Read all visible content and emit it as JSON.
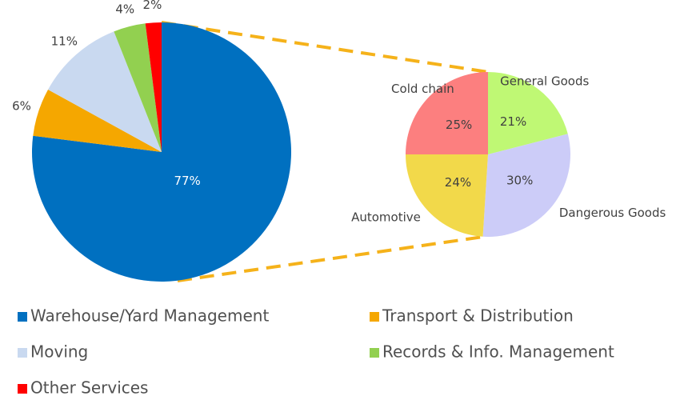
{
  "chart_data": [
    {
      "type": "pie",
      "categories": [
        "Warehouse/Yard Management",
        "Transport & Distribution",
        "Moving",
        "Records & Info. Management",
        "Other Services"
      ],
      "values": [
        77,
        6,
        11,
        4,
        2
      ],
      "value_labels": [
        "77%",
        "6%",
        "11%",
        "4%",
        "2%"
      ],
      "colors": [
        "#0070c0",
        "#f5a700",
        "#c9d9f0",
        "#92d050",
        "#ff0000"
      ],
      "legend": "bottom"
    },
    {
      "type": "pie",
      "categories": [
        "General Goods",
        "Dangerous Goods",
        "Automotive",
        "Cold chain"
      ],
      "values": [
        21,
        30,
        24,
        25
      ],
      "value_labels": [
        "21%",
        "30%",
        "24%",
        "25%"
      ],
      "colors": [
        "#bff874",
        "#ccccf8",
        "#f2d94a",
        "#fc7f7f"
      ]
    }
  ]
}
